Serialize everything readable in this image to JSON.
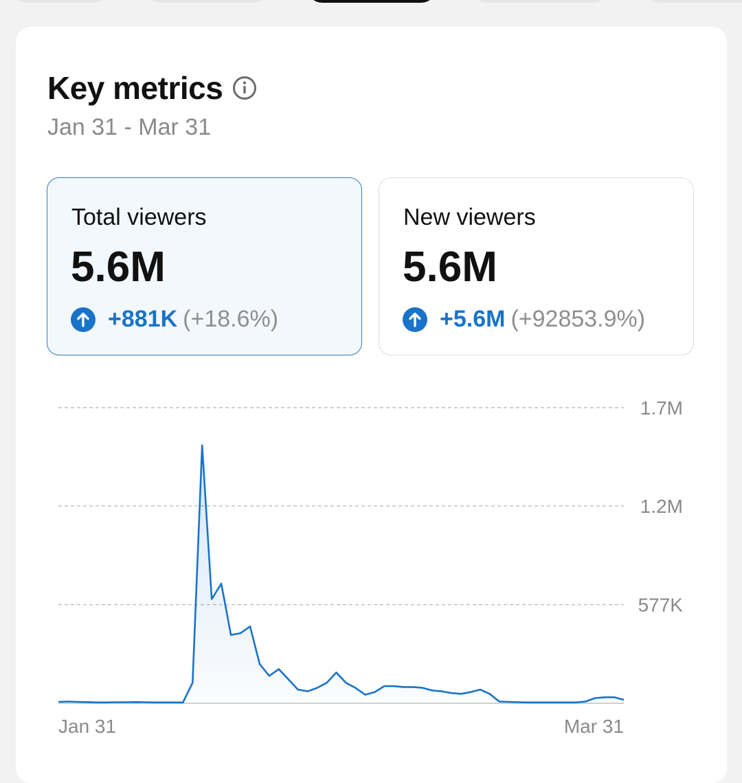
{
  "header": {
    "title": "Key metrics",
    "info_icon": "info-icon",
    "date_range": "Jan 31 - Mar 31"
  },
  "metrics": [
    {
      "label": "Total viewers",
      "value": "5.6M",
      "change": "+881K",
      "change_pct": "(+18.6%)",
      "selected": true
    },
    {
      "label": "New viewers",
      "value": "5.6M",
      "change": "+5.6M",
      "change_pct": "(+92853.9%)",
      "selected": false
    }
  ],
  "colors": {
    "accent": "#1a73c8",
    "line": "#1a73c8",
    "selected_border": "#2e7bbf",
    "selected_bg": "#f3f8fc"
  },
  "chart_data": {
    "type": "area",
    "y_tick_labels": [
      "1.7M",
      "1.2M",
      "577K"
    ],
    "y_ticks": [
      1730000,
      1155000,
      577000
    ],
    "x_tick_labels": [
      "Jan 31",
      "Mar 31"
    ],
    "ylim": [
      0,
      1730000
    ],
    "grid": true,
    "values": [
      8000,
      10000,
      8000,
      7000,
      5000,
      5000,
      6000,
      6000,
      7000,
      6000,
      5000,
      5000,
      5000,
      5000,
      120000,
      1510000,
      610000,
      700000,
      400000,
      410000,
      450000,
      230000,
      160000,
      200000,
      140000,
      80000,
      70000,
      90000,
      120000,
      180000,
      120000,
      90000,
      50000,
      65000,
      100000,
      100000,
      95000,
      95000,
      90000,
      75000,
      70000,
      60000,
      55000,
      65000,
      80000,
      55000,
      10000,
      8000,
      6000,
      5000,
      5000,
      5000,
      5000,
      5000,
      5000,
      10000,
      30000,
      35000,
      35000,
      20000
    ]
  }
}
